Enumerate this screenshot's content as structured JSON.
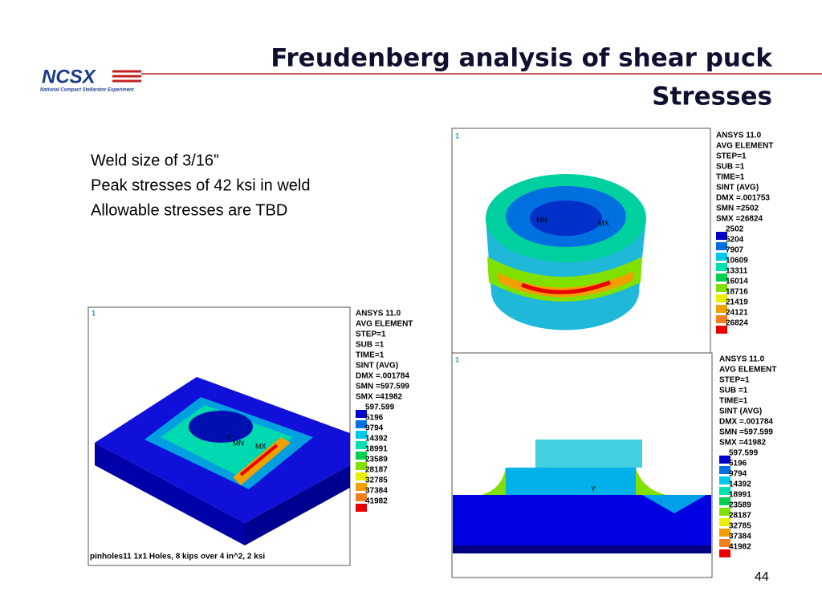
{
  "header": {
    "title_lines": [
      "Freudenberg analysis of shear puck",
      "Stresses"
    ],
    "logo": "NCSX",
    "logo_subtitle": "National Compact Stellarator Experiment"
  },
  "bullets": [
    "Weld size of 3/16”",
    "Peak stresses of 42 ksi in weld",
    "Allowable stresses are TBD"
  ],
  "legend_colors": [
    "#0000c8",
    "#0070e0",
    "#00c8e8",
    "#00e0b0",
    "#00d050",
    "#80e000",
    "#e8f000",
    "#f0a000",
    "#f08020",
    "#e80000"
  ],
  "panels": [
    {
      "window_number": "1",
      "header": [
        "ANSYS 11.0",
        "AVG ELEMENT",
        "STEP=1",
        "SUB =1",
        "TIME=1",
        "SINT     (AVG)",
        "DMX =.001753",
        "SMN =2502",
        "SMX =26824"
      ],
      "legend": [
        2502,
        5204,
        7907,
        10609,
        13311,
        16014,
        18716,
        21419,
        24121,
        26824
      ],
      "markers": [
        "MN",
        "MX"
      ]
    },
    {
      "window_number": "1",
      "header": [
        "ANSYS 11.0",
        "AVG ELEMENT",
        "STEP=1",
        "SUB =1",
        "TIME=1",
        "SINT     (AVG)",
        "DMX =.001784",
        "SMN =597.599",
        "SMX =41982"
      ],
      "legend": [
        597.599,
        5196,
        9794,
        14392,
        18991,
        23589,
        28187,
        32785,
        37384,
        41982
      ],
      "markers": [
        "MN",
        "MX",
        "Y"
      ],
      "caption": "pinholes11 1x1 Holes, 8 kips over 4 in^2, 2 ksi"
    },
    {
      "window_number": "1",
      "header": [
        "ANSYS 11.0",
        "AVG ELEMENT",
        "STEP=1",
        "SUB =1",
        "TIME=1",
        "SINT     (AVG)",
        "DMX =.001784",
        "SMN =597.599",
        "SMX =41982"
      ],
      "legend": [
        597.599,
        5196,
        9794,
        14392,
        18991,
        23589,
        28187,
        32785,
        37384,
        41982
      ],
      "markers": [
        "Y"
      ]
    }
  ],
  "page_number": "44"
}
